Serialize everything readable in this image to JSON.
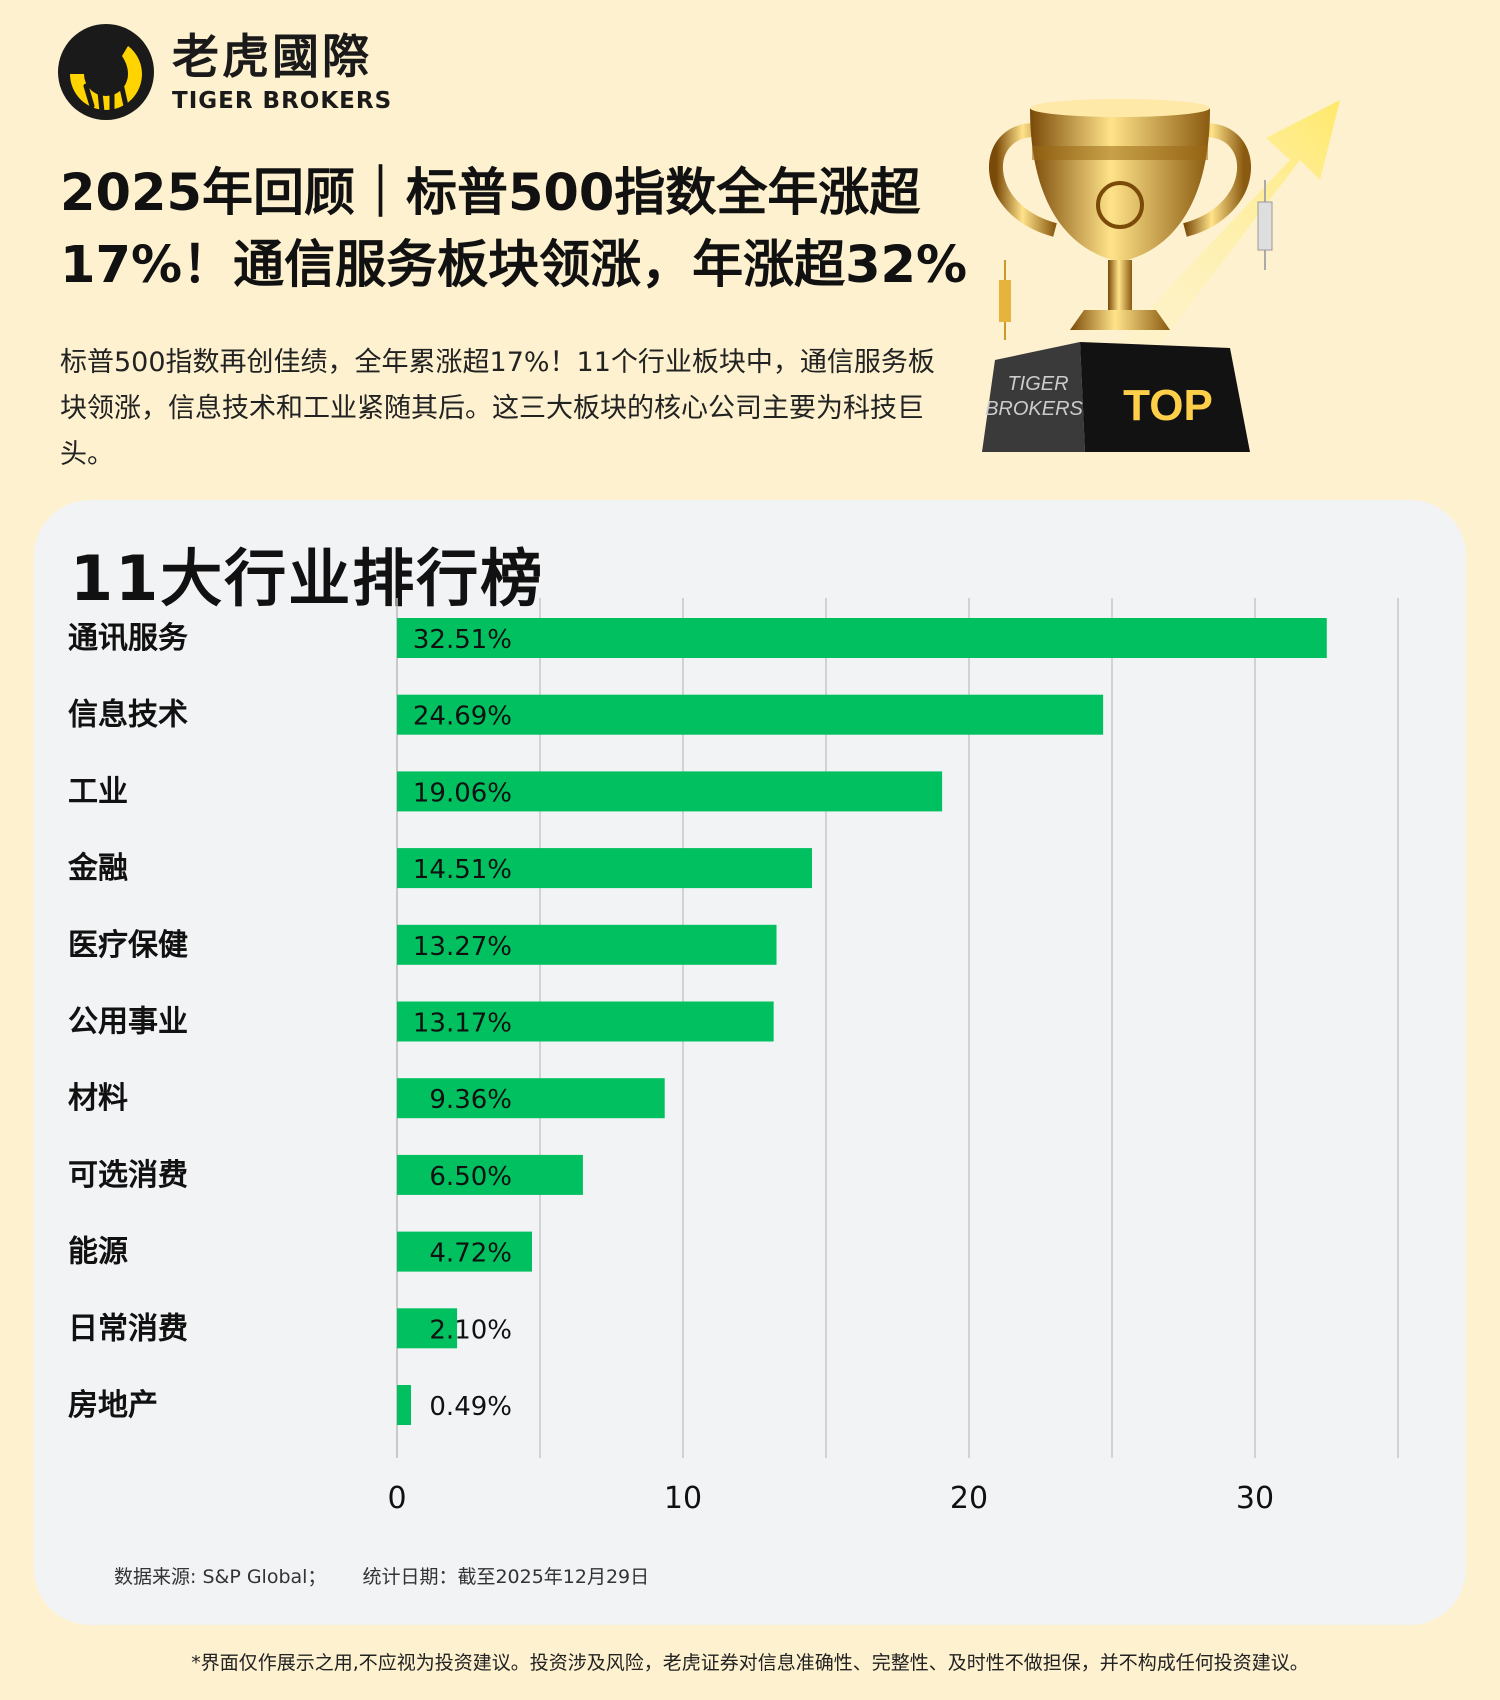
{
  "brand": {
    "name_cn": "老虎國際",
    "name_en": "TIGER BROKERS"
  },
  "headline": "2025年回顾｜标普500指数全年涨超17%！通信服务板块领涨，年涨超32%",
  "intro": "标普500指数再创佳绩，全年累涨超17%！11个行业板块中，通信服务板块领涨，信息技术和工业紧随其后。这三大板块的核心公司主要为科技巨头。",
  "trophy": {
    "plaque_brand": [
      "TIGER",
      "BROKERS"
    ],
    "plaque_label": "TOP"
  },
  "chart_title": "11大行业排行榜",
  "chart_data": {
    "type": "bar",
    "orientation": "horizontal",
    "categories": [
      "通讯服务",
      "信息技术",
      "工业",
      "金融",
      "医疗保健",
      "公用事业",
      "材料",
      "可选消费",
      "能源",
      "日常消费",
      "房地产"
    ],
    "values": [
      32.51,
      24.69,
      19.06,
      14.51,
      13.27,
      13.17,
      9.36,
      6.5,
      4.72,
      2.1,
      0.49
    ],
    "labels": [
      "32.51%",
      "24.69%",
      "19.06%",
      "14.51%",
      "13.27%",
      "13.17%",
      "9.36%",
      "6.50%",
      "4.72%",
      "2.10%",
      "0.49%"
    ],
    "x_ticks": [
      0,
      10,
      20,
      30
    ],
    "xlim": [
      0,
      35
    ],
    "grid": "vertical",
    "bar_color": "#00c060"
  },
  "source_text": "数据来源: S&P Global；",
  "date_text": "统计日期：截至2025年12月29日",
  "disclaimer": "*界面仅作展示之用,不应视为投资建议。投资涉及风险，老虎证券对信息准确性、完整性、及时性不做担保，并不构成任何投资建议。",
  "colors": {
    "background": "#fdf1cf",
    "card": "#f2f3f5",
    "bar": "#00c060",
    "grid": "#c8c8c8",
    "brand_yellow": "#ffd400"
  }
}
